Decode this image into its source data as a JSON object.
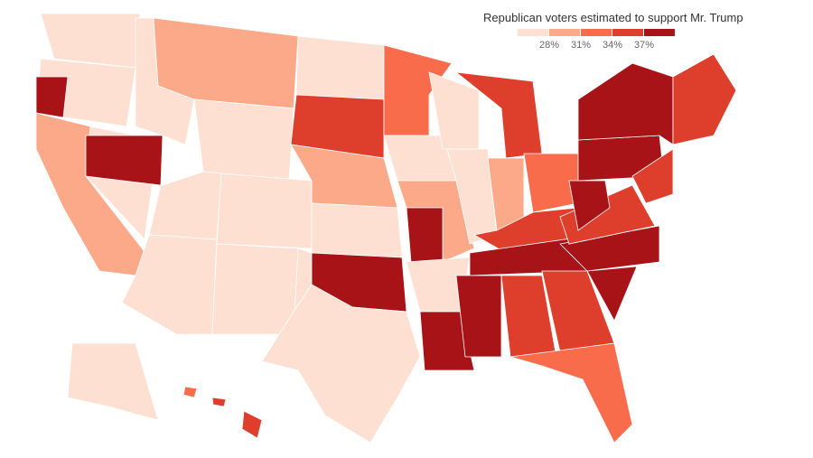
{
  "legend": {
    "title": "Republican voters estimated to support Mr. Trump",
    "colors": [
      "#fde0d2",
      "#fca98a",
      "#f86c4c",
      "#de3e2c",
      "#a81318"
    ],
    "ticks": [
      "28%",
      "31%",
      "34%",
      "37%"
    ]
  },
  "map": {
    "border_color": "#ffffff",
    "region_levels": [
      0,
      0,
      4,
      1,
      0,
      4,
      0,
      1,
      0,
      0,
      0,
      0,
      0,
      0,
      0,
      3,
      1,
      0,
      4,
      0,
      2,
      0,
      1,
      4,
      0,
      4,
      0,
      0,
      3,
      1,
      2,
      3,
      4,
      4,
      3,
      3,
      2,
      4,
      4,
      4,
      3,
      4,
      4,
      4,
      3,
      3,
      0,
      2,
      3,
      3
    ]
  }
}
